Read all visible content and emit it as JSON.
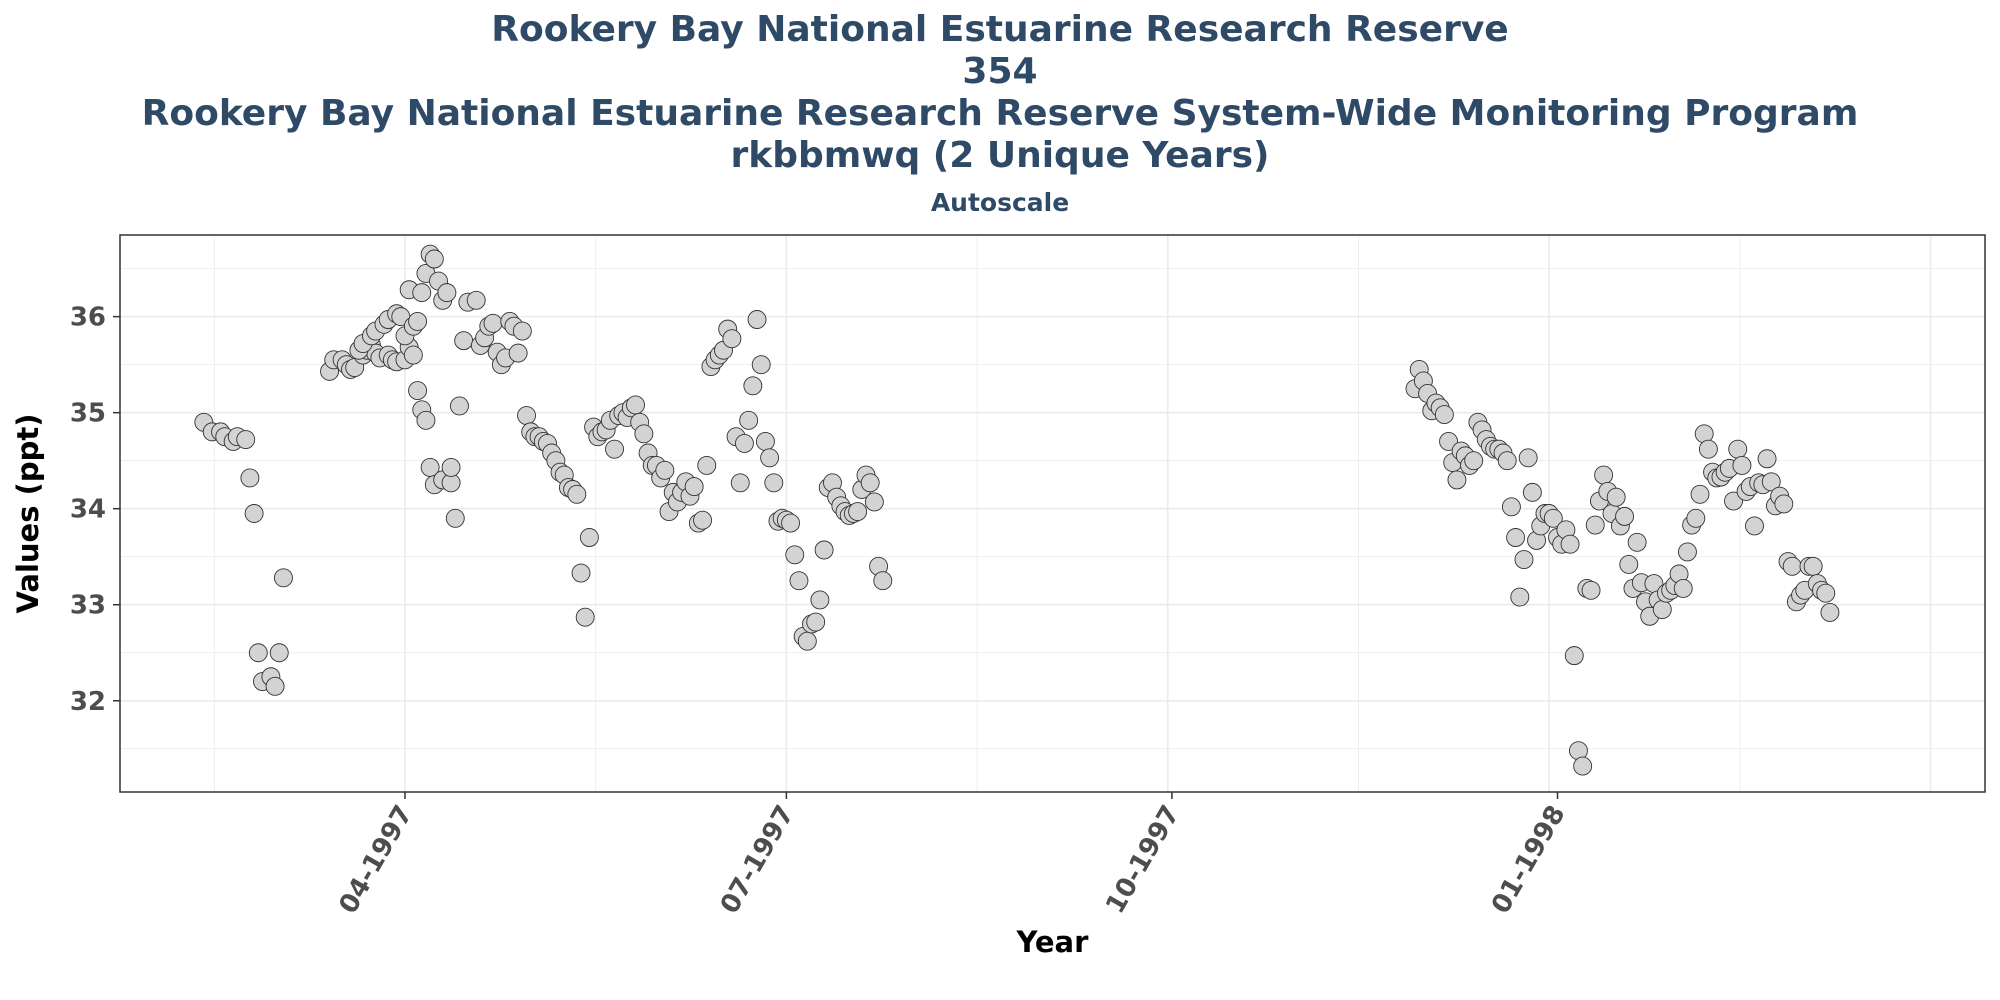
{
  "chart_data": {
    "type": "scatter",
    "title_lines": [
      "Rookery Bay National Estuarine Research Reserve",
      "354",
      "Rookery Bay National Estuarine Research Reserve System-Wide Monitoring Program",
      "rkbbmwq (2 Unique Years)"
    ],
    "subtitle": "Autoscale",
    "xlabel": "Year",
    "ylabel": "Values (ppt)",
    "x_ticks": [
      {
        "date": "1997-04-01",
        "label": "04-1997"
      },
      {
        "date": "1997-07-01",
        "label": "07-1997"
      },
      {
        "date": "1997-10-01",
        "label": "10-1997"
      },
      {
        "date": "1998-01-01",
        "label": "01-1998"
      }
    ],
    "y_ticks": [
      32,
      33,
      34,
      35,
      36
    ],
    "xlim": [
      "1997-01-23",
      "1998-04-13"
    ],
    "ylim": [
      31.05,
      36.85
    ],
    "grid": true,
    "colors": {
      "point_fill": "#d3d3d3",
      "point_stroke": "#333333",
      "title": "#2e4a66",
      "grid": "#ebebeb"
    },
    "points": [
      [
        "1997-02-12",
        34.9
      ],
      [
        "1997-02-14",
        34.8
      ],
      [
        "1997-02-16",
        34.8
      ],
      [
        "1997-02-17",
        34.75
      ],
      [
        "1997-02-19",
        34.7
      ],
      [
        "1997-02-20",
        34.75
      ],
      [
        "1997-02-22",
        34.72
      ],
      [
        "1997-02-23",
        34.32
      ],
      [
        "1997-02-24",
        33.95
      ],
      [
        "1997-02-25",
        32.5
      ],
      [
        "1997-02-26",
        32.2
      ],
      [
        "1997-02-28",
        32.25
      ],
      [
        "1997-03-01",
        32.15
      ],
      [
        "1997-03-02",
        32.5
      ],
      [
        "1997-03-03",
        33.28
      ],
      [
        "1997-03-14",
        35.43
      ],
      [
        "1997-03-15",
        35.55
      ],
      [
        "1997-03-17",
        35.55
      ],
      [
        "1997-03-18",
        35.5
      ],
      [
        "1997-03-19",
        35.45
      ],
      [
        "1997-03-20",
        35.47
      ],
      [
        "1997-03-22",
        35.6
      ],
      [
        "1997-03-23",
        35.65
      ],
      [
        "1997-03-24",
        35.7
      ],
      [
        "1997-03-25",
        35.62
      ],
      [
        "1997-03-26",
        35.57
      ],
      [
        "1997-03-28",
        35.6
      ],
      [
        "1997-03-29",
        35.55
      ],
      [
        "1997-03-30",
        35.53
      ],
      [
        "1997-04-01",
        35.55
      ],
      [
        "1997-04-02",
        35.68
      ],
      [
        "1997-04-03",
        35.6
      ],
      [
        "1997-04-04",
        35.23
      ],
      [
        "1997-04-05",
        35.03
      ],
      [
        "1997-04-06",
        34.92
      ],
      [
        "1997-04-07",
        34.43
      ],
      [
        "1997-04-08",
        34.25
      ],
      [
        "1997-04-10",
        34.3
      ],
      [
        "1997-04-12",
        34.27
      ],
      [
        "1997-03-21",
        35.65
      ],
      [
        "1997-03-22",
        35.72
      ],
      [
        "1997-03-24",
        35.8
      ],
      [
        "1997-03-25",
        35.85
      ],
      [
        "1997-03-27",
        35.92
      ],
      [
        "1997-03-28",
        35.97
      ],
      [
        "1997-03-30",
        36.03
      ],
      [
        "1997-03-31",
        36.0
      ],
      [
        "1997-04-01",
        35.8
      ],
      [
        "1997-04-02",
        36.28
      ],
      [
        "1997-04-03",
        35.9
      ],
      [
        "1997-04-04",
        35.95
      ],
      [
        "1997-04-05",
        36.25
      ],
      [
        "1997-04-06",
        36.45
      ],
      [
        "1997-04-07",
        36.65
      ],
      [
        "1997-04-08",
        36.6
      ],
      [
        "1997-04-09",
        36.37
      ],
      [
        "1997-04-10",
        36.17
      ],
      [
        "1997-04-11",
        36.25
      ],
      [
        "1997-04-12",
        34.43
      ],
      [
        "1997-04-13",
        33.9
      ],
      [
        "1997-04-14",
        35.07
      ],
      [
        "1997-04-15",
        35.75
      ],
      [
        "1997-04-16",
        36.15
      ],
      [
        "1997-04-18",
        36.17
      ],
      [
        "1997-04-19",
        35.7
      ],
      [
        "1997-04-20",
        35.78
      ],
      [
        "1997-04-21",
        35.9
      ],
      [
        "1997-04-22",
        35.93
      ],
      [
        "1997-04-23",
        35.63
      ],
      [
        "1997-04-24",
        35.5
      ],
      [
        "1997-04-25",
        35.57
      ],
      [
        "1997-04-26",
        35.95
      ],
      [
        "1997-04-27",
        35.9
      ],
      [
        "1997-04-28",
        35.62
      ],
      [
        "1997-04-29",
        35.85
      ],
      [
        "1997-04-30",
        34.97
      ],
      [
        "1997-05-01",
        34.8
      ],
      [
        "1997-05-02",
        34.75
      ],
      [
        "1997-05-03",
        34.75
      ],
      [
        "1997-05-04",
        34.7
      ],
      [
        "1997-05-05",
        34.68
      ],
      [
        "1997-05-06",
        34.58
      ],
      [
        "1997-05-07",
        34.5
      ],
      [
        "1997-05-08",
        34.38
      ],
      [
        "1997-05-09",
        34.35
      ],
      [
        "1997-05-10",
        34.22
      ],
      [
        "1997-05-11",
        34.2
      ],
      [
        "1997-05-12",
        34.15
      ],
      [
        "1997-05-13",
        33.33
      ],
      [
        "1997-05-14",
        32.87
      ],
      [
        "1997-05-15",
        33.7
      ],
      [
        "1997-05-16",
        34.85
      ],
      [
        "1997-05-17",
        34.75
      ],
      [
        "1997-05-18",
        34.8
      ],
      [
        "1997-05-19",
        34.82
      ],
      [
        "1997-05-20",
        34.92
      ],
      [
        "1997-05-21",
        34.62
      ],
      [
        "1997-05-22",
        34.97
      ],
      [
        "1997-05-23",
        35.0
      ],
      [
        "1997-05-24",
        34.95
      ],
      [
        "1997-05-25",
        35.05
      ],
      [
        "1997-05-26",
        35.08
      ],
      [
        "1997-05-27",
        34.9
      ],
      [
        "1997-05-28",
        34.78
      ],
      [
        "1997-05-29",
        34.58
      ],
      [
        "1997-05-30",
        34.45
      ],
      [
        "1997-05-31",
        34.45
      ],
      [
        "1997-06-01",
        34.32
      ],
      [
        "1997-06-02",
        34.4
      ],
      [
        "1997-06-03",
        33.97
      ],
      [
        "1997-06-04",
        34.17
      ],
      [
        "1997-06-05",
        34.07
      ],
      [
        "1997-06-06",
        34.17
      ],
      [
        "1997-06-07",
        34.28
      ],
      [
        "1997-06-08",
        34.13
      ],
      [
        "1997-06-09",
        34.23
      ],
      [
        "1997-06-10",
        33.85
      ],
      [
        "1997-06-11",
        33.88
      ],
      [
        "1997-06-12",
        34.45
      ],
      [
        "1997-06-13",
        35.48
      ],
      [
        "1997-06-14",
        35.55
      ],
      [
        "1997-06-15",
        35.6
      ],
      [
        "1997-06-16",
        35.65
      ],
      [
        "1997-06-17",
        35.87
      ],
      [
        "1997-06-18",
        35.77
      ],
      [
        "1997-06-19",
        34.75
      ],
      [
        "1997-06-20",
        34.27
      ],
      [
        "1997-06-21",
        34.68
      ],
      [
        "1997-06-22",
        34.92
      ],
      [
        "1997-06-23",
        35.28
      ],
      [
        "1997-06-24",
        35.97
      ],
      [
        "1997-06-25",
        35.5
      ],
      [
        "1997-06-26",
        34.7
      ],
      [
        "1997-06-27",
        34.53
      ],
      [
        "1997-06-28",
        34.27
      ],
      [
        "1997-06-29",
        33.87
      ],
      [
        "1997-06-30",
        33.9
      ],
      [
        "1997-07-01",
        33.88
      ],
      [
        "1997-07-02",
        33.85
      ],
      [
        "1997-07-03",
        33.52
      ],
      [
        "1997-07-04",
        33.25
      ],
      [
        "1997-07-05",
        32.67
      ],
      [
        "1997-07-06",
        32.62
      ],
      [
        "1997-07-07",
        32.8
      ],
      [
        "1997-07-08",
        32.82
      ],
      [
        "1997-07-09",
        33.05
      ],
      [
        "1997-07-10",
        33.57
      ],
      [
        "1997-07-11",
        34.22
      ],
      [
        "1997-07-12",
        34.27
      ],
      [
        "1997-07-13",
        34.12
      ],
      [
        "1997-07-14",
        34.03
      ],
      [
        "1997-07-15",
        33.97
      ],
      [
        "1997-07-16",
        33.93
      ],
      [
        "1997-07-17",
        33.95
      ],
      [
        "1997-07-18",
        33.97
      ],
      [
        "1997-07-19",
        34.2
      ],
      [
        "1997-07-20",
        34.35
      ],
      [
        "1997-07-21",
        34.27
      ],
      [
        "1997-07-22",
        34.07
      ],
      [
        "1997-07-23",
        33.4
      ],
      [
        "1997-07-24",
        33.25
      ],
      [
        "1997-11-28",
        35.25
      ],
      [
        "1997-11-29",
        35.45
      ],
      [
        "1997-11-30",
        35.33
      ],
      [
        "1997-12-01",
        35.2
      ],
      [
        "1997-12-02",
        35.02
      ],
      [
        "1997-12-03",
        35.1
      ],
      [
        "1997-12-04",
        35.05
      ],
      [
        "1997-12-05",
        34.98
      ],
      [
        "1997-12-06",
        34.7
      ],
      [
        "1997-12-07",
        34.48
      ],
      [
        "1997-12-08",
        34.3
      ],
      [
        "1997-12-09",
        34.6
      ],
      [
        "1997-12-10",
        34.55
      ],
      [
        "1997-12-11",
        34.45
      ],
      [
        "1997-12-12",
        34.5
      ],
      [
        "1997-12-13",
        34.9
      ],
      [
        "1997-12-14",
        34.82
      ],
      [
        "1997-12-15",
        34.72
      ],
      [
        "1997-12-16",
        34.65
      ],
      [
        "1997-12-17",
        34.62
      ],
      [
        "1997-12-18",
        34.62
      ],
      [
        "1997-12-19",
        34.58
      ],
      [
        "1997-12-20",
        34.5
      ],
      [
        "1997-12-21",
        34.02
      ],
      [
        "1997-12-22",
        33.7
      ],
      [
        "1997-12-23",
        33.08
      ],
      [
        "1997-12-24",
        33.47
      ],
      [
        "1997-12-25",
        34.53
      ],
      [
        "1997-12-26",
        34.17
      ],
      [
        "1997-12-27",
        33.67
      ],
      [
        "1997-12-28",
        33.82
      ],
      [
        "1997-12-29",
        33.95
      ],
      [
        "1997-12-30",
        33.95
      ],
      [
        "1997-12-31",
        33.9
      ],
      [
        "1998-01-01",
        33.7
      ],
      [
        "1998-01-02",
        33.63
      ],
      [
        "1998-01-03",
        33.78
      ],
      [
        "1998-01-04",
        33.63
      ],
      [
        "1998-01-05",
        32.47
      ],
      [
        "1998-01-06",
        31.48
      ],
      [
        "1998-01-07",
        31.32
      ],
      [
        "1998-01-08",
        33.17
      ],
      [
        "1998-01-09",
        33.15
      ],
      [
        "1998-01-10",
        33.83
      ],
      [
        "1998-01-11",
        34.08
      ],
      [
        "1998-01-12",
        34.35
      ],
      [
        "1998-01-13",
        34.18
      ],
      [
        "1998-01-14",
        33.95
      ],
      [
        "1998-01-15",
        34.12
      ],
      [
        "1998-01-16",
        33.82
      ],
      [
        "1998-01-17",
        33.92
      ],
      [
        "1998-01-18",
        33.42
      ],
      [
        "1998-01-19",
        33.17
      ],
      [
        "1998-01-20",
        33.65
      ],
      [
        "1998-01-21",
        33.23
      ],
      [
        "1998-01-22",
        33.03
      ],
      [
        "1998-01-23",
        32.88
      ],
      [
        "1998-01-24",
        33.22
      ],
      [
        "1998-01-25",
        33.05
      ],
      [
        "1998-01-26",
        32.95
      ],
      [
        "1998-01-27",
        33.12
      ],
      [
        "1998-01-28",
        33.15
      ],
      [
        "1998-01-29",
        33.2
      ],
      [
        "1998-01-30",
        33.32
      ],
      [
        "1998-01-31",
        33.17
      ],
      [
        "1998-02-01",
        33.55
      ],
      [
        "1998-02-02",
        33.83
      ],
      [
        "1998-02-03",
        33.9
      ],
      [
        "1998-02-04",
        34.15
      ],
      [
        "1998-02-05",
        34.78
      ],
      [
        "1998-02-06",
        34.62
      ],
      [
        "1998-02-07",
        34.38
      ],
      [
        "1998-02-08",
        34.32
      ],
      [
        "1998-02-09",
        34.33
      ],
      [
        "1998-02-10",
        34.38
      ],
      [
        "1998-02-11",
        34.42
      ],
      [
        "1998-02-12",
        34.08
      ],
      [
        "1998-02-13",
        34.62
      ],
      [
        "1998-02-14",
        34.45
      ],
      [
        "1998-02-15",
        34.18
      ],
      [
        "1998-02-16",
        34.23
      ],
      [
        "1998-02-17",
        33.82
      ],
      [
        "1998-02-18",
        34.27
      ],
      [
        "1998-02-19",
        34.25
      ],
      [
        "1998-02-20",
        34.52
      ],
      [
        "1998-02-21",
        34.28
      ],
      [
        "1998-02-22",
        34.03
      ],
      [
        "1998-02-23",
        34.13
      ],
      [
        "1998-02-24",
        34.05
      ],
      [
        "1998-02-25",
        33.45
      ],
      [
        "1998-02-26",
        33.4
      ],
      [
        "1998-02-27",
        33.03
      ],
      [
        "1998-02-28",
        33.1
      ],
      [
        "1998-03-01",
        33.15
      ],
      [
        "1998-03-02",
        33.4
      ],
      [
        "1998-03-03",
        33.4
      ],
      [
        "1998-03-04",
        33.22
      ],
      [
        "1998-03-05",
        33.15
      ],
      [
        "1998-03-06",
        33.12
      ],
      [
        "1998-03-07",
        32.92
      ]
    ]
  }
}
